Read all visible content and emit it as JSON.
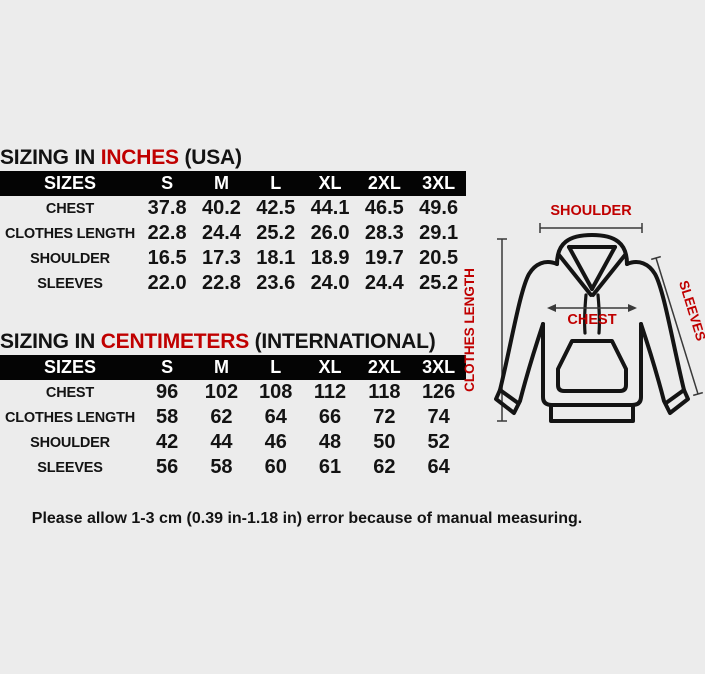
{
  "page": {
    "background": "#ECECEC",
    "accent_red": "#C00000",
    "header_bar_color": "#040404",
    "header_text_color": "#FFFFFF",
    "body_text_color": "#131313"
  },
  "tables": [
    {
      "title": {
        "prefix": "SIZING IN ",
        "highlight": "INCHES",
        "suffix": " (USA)"
      },
      "columns": [
        "SIZES",
        "S",
        "M",
        "L",
        "XL",
        "2XL",
        "3XL"
      ],
      "rows": [
        {
          "label": "CHEST",
          "values": [
            "37.8",
            "40.2",
            "42.5",
            "44.1",
            "46.5",
            "49.6"
          ]
        },
        {
          "label": "CLOTHES LENGTH",
          "values": [
            "22.8",
            "24.4",
            "25.2",
            "26.0",
            "28.3",
            "29.1"
          ]
        },
        {
          "label": "SHOULDER",
          "values": [
            "16.5",
            "17.3",
            "18.1",
            "18.9",
            "19.7",
            "20.5"
          ]
        },
        {
          "label": "SLEEVES",
          "values": [
            "22.0",
            "22.8",
            "23.6",
            "24.0",
            "24.4",
            "25.2"
          ]
        }
      ]
    },
    {
      "title": {
        "prefix": "SIZING IN ",
        "highlight": "CENTIMETERS",
        "suffix": " (INTERNATIONAL)"
      },
      "columns": [
        "SIZES",
        "S",
        "M",
        "L",
        "XL",
        "2XL",
        "3XL"
      ],
      "rows": [
        {
          "label": "CHEST",
          "values": [
            "96",
            "102",
            "108",
            "112",
            "118",
            "126"
          ]
        },
        {
          "label": "CLOTHES LENGTH",
          "values": [
            "58",
            "62",
            "64",
            "66",
            "72",
            "74"
          ]
        },
        {
          "label": "SHOULDER",
          "values": [
            "42",
            "44",
            "46",
            "48",
            "50",
            "52"
          ]
        },
        {
          "label": "SLEEVES",
          "values": [
            "56",
            "58",
            "60",
            "61",
            "62",
            "64"
          ]
        }
      ]
    }
  ],
  "diagram": {
    "shoulder_label": "SHOULDER",
    "chest_label": "CHEST",
    "clothes_length_label": "CLOTHES LENGTH",
    "sleeves_label": "SLEEVES"
  },
  "footer": {
    "note": "Please allow 1-3 cm (0.39 in-1.18 in) error because of manual measuring."
  }
}
